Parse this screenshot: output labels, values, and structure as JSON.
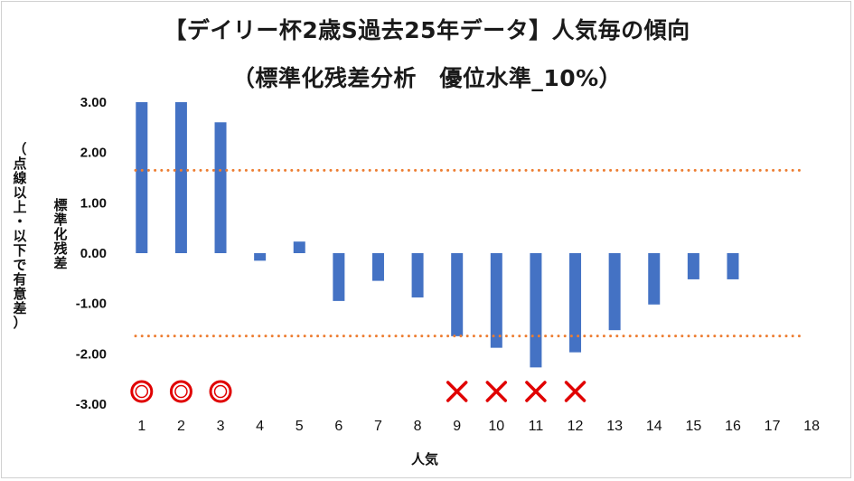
{
  "title": {
    "line1": "【デイリー杯2歳S過去25年データ】人気毎の傾向",
    "line2": "（標準化残差分析　優位水準_10%）"
  },
  "chart_data": {
    "type": "bar",
    "categories": [
      "1",
      "2",
      "3",
      "4",
      "5",
      "6",
      "7",
      "8",
      "9",
      "10",
      "11",
      "12",
      "13",
      "14",
      "15",
      "16",
      "17",
      "18"
    ],
    "values": [
      3.0,
      3.0,
      2.6,
      -0.15,
      0.23,
      -0.95,
      -0.55,
      -0.88,
      -1.65,
      -1.88,
      -2.27,
      -1.97,
      -1.53,
      -1.02,
      -0.52,
      -0.52,
      0,
      0
    ],
    "ylim": [
      -3.0,
      3.0
    ],
    "yticks": [
      "3.00",
      "2.00",
      "1.00",
      "0.00",
      "-1.00",
      "-2.00",
      "-3.00"
    ],
    "ytick_values": [
      3,
      2,
      1,
      0,
      -1,
      -2,
      -3
    ],
    "threshold_upper": 1.645,
    "threshold_lower": -1.645,
    "xlabel": "人気",
    "ylabel_main": "標準化残差",
    "ylabel_sub": "（点線以上・以下で有意差）",
    "markers": [
      {
        "category": "1",
        "symbol": "circle"
      },
      {
        "category": "2",
        "symbol": "circle"
      },
      {
        "category": "3",
        "symbol": "circle"
      },
      {
        "category": "9",
        "symbol": "cross"
      },
      {
        "category": "10",
        "symbol": "cross"
      },
      {
        "category": "11",
        "symbol": "cross"
      },
      {
        "category": "12",
        "symbol": "cross"
      }
    ],
    "colors": {
      "bar": "#4472C4",
      "threshold": "#ED7D31",
      "marker": "#E00000",
      "grid": "#d9d9d9"
    },
    "grid": false,
    "legend": "none"
  }
}
